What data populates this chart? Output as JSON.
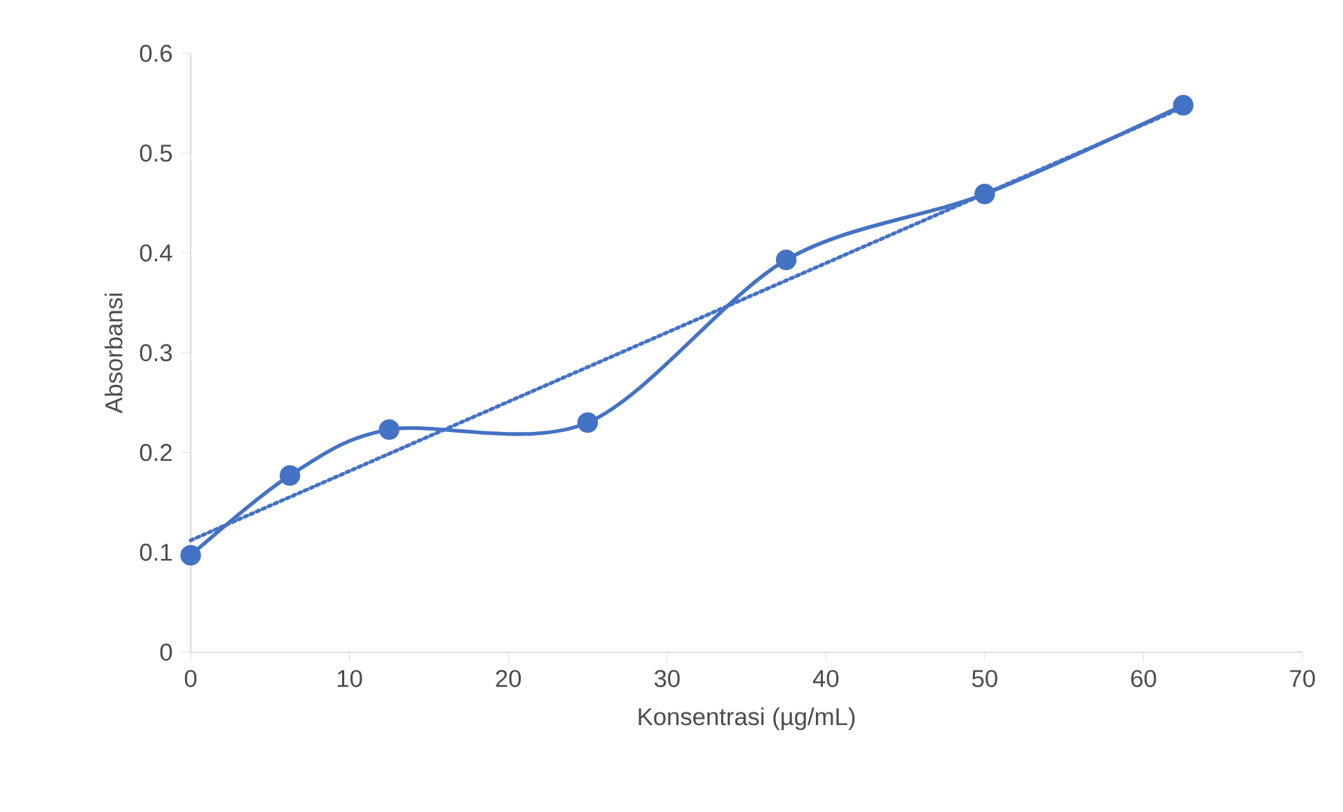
{
  "chart_data": {
    "type": "line",
    "xlabel": "Konsentrasi (µg/mL)",
    "ylabel": "Absorbansi",
    "x": [
      0,
      6.25,
      12.5,
      25,
      37.5,
      50,
      62.5
    ],
    "series": [
      {
        "color": "#4472c4",
        "values": [
          0.097,
          0.177,
          0.223,
          0.23,
          0.393,
          0.459,
          0.548
        ],
        "marker": "circle",
        "line_style": "solid"
      },
      {
        "color": "#4472c4",
        "x": [
          0,
          62.5
        ],
        "values": [
          0.112,
          0.546
        ],
        "marker": "none",
        "line_style": "dotted"
      }
    ],
    "xlim": [
      0,
      70
    ],
    "xticks": [
      0,
      10,
      20,
      30,
      40,
      50,
      60,
      70
    ],
    "ylim": [
      0,
      0.6
    ],
    "yticks": [
      0,
      0.1,
      0.2,
      0.3,
      0.4,
      0.5,
      0.6
    ]
  }
}
